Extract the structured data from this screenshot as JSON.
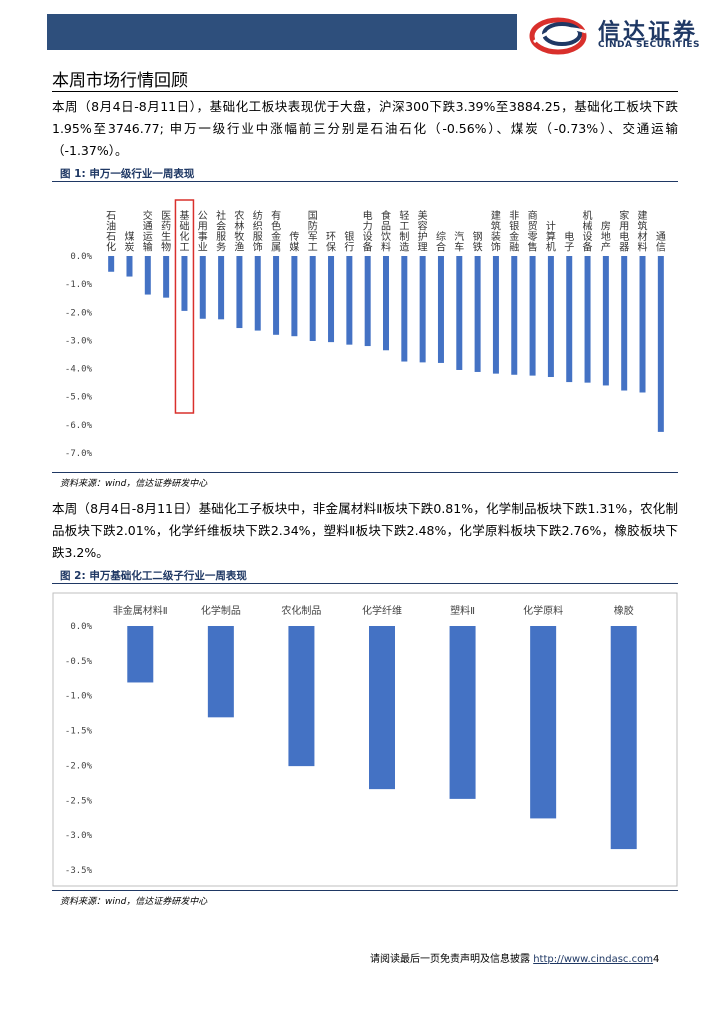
{
  "header": {
    "logo_cn": "信达证券",
    "logo_en": "CINDA SECURITIES"
  },
  "section_title": "本周市场行情回顾",
  "para1": "本周（8月4日-8月11日），基础化工板块表现优于大盘，沪深300下跌3.39%至3884.25，基础化工板块下跌1.95%至3746.77; 申万一级行业中涨幅前三分别是石油石化（-0.56%）、煤炭（-0.73%）、交通运输（-1.37%）。",
  "fig1_label": "图 1:  申万一级行业一周表现",
  "fig1_source": "资料来源：wind，信达证券研发中心",
  "para2": "本周（8月4日-8月11日）基础化工子板块中，非金属材料Ⅱ板块下跌0.81%，化学制品板块下跌1.31%，农化制品板块下跌2.01%，化学纤维板块下跌2.34%，塑料Ⅱ板块下跌2.48%，化学原料板块下跌2.76%，橡胶板块下跌3.2%。",
  "fig2_label": "图 2:  申万基础化工二级子行业一周表现",
  "fig2_source": "资料来源：wind，信达证券研发中心",
  "footer": {
    "text": "请阅读最后一页免责声明及信息披露 ",
    "link": "http://www.cindasc.com",
    "page": "4"
  },
  "colors": {
    "bar": "#4472c4",
    "highlight": "#d9302c",
    "brand": "#1f3864"
  },
  "chart_data": [
    {
      "type": "bar",
      "categories": [
        "石油石化",
        "煤炭",
        "交通运输",
        "医药生物",
        "基础化工",
        "公用事业",
        "社会服务",
        "农林牧渔",
        "纺织服饰",
        "有色金属",
        "传媒",
        "国防军工",
        "环保",
        "银行",
        "电力设备",
        "食品饮料",
        "轻工制造",
        "美容护理",
        "综合",
        "汽车",
        "钢铁",
        "建筑装饰",
        "非银金融",
        "商贸零售",
        "计算机",
        "电子",
        "机械设备",
        "房地产",
        "家用电器",
        "建筑材料",
        "通信"
      ],
      "values": [
        -0.56,
        -0.73,
        -1.37,
        -1.48,
        -1.95,
        -2.23,
        -2.25,
        -2.56,
        -2.65,
        -2.8,
        -2.85,
        -3.02,
        -3.06,
        -3.15,
        -3.2,
        -3.35,
        -3.75,
        -3.78,
        -3.8,
        -4.05,
        -4.12,
        -4.18,
        -4.22,
        -4.25,
        -4.3,
        -4.48,
        -4.5,
        -4.6,
        -4.78,
        -4.85,
        -6.25
      ],
      "yticks": [
        "0.0%",
        "-1.0%",
        "-2.0%",
        "-3.0%",
        "-4.0%",
        "-5.0%",
        "-6.0%",
        "-7.0%"
      ],
      "ylim": [
        -7,
        0
      ],
      "highlight_index": 4
    },
    {
      "type": "bar",
      "categories": [
        "非金属材料Ⅱ",
        "化学制品",
        "农化制品",
        "化学纤维",
        "塑料Ⅱ",
        "化学原料",
        "橡胶"
      ],
      "values": [
        -0.81,
        -1.31,
        -2.01,
        -2.34,
        -2.48,
        -2.76,
        -3.2
      ],
      "yticks": [
        "0.0%",
        "-0.5%",
        "-1.0%",
        "-1.5%",
        "-2.0%",
        "-2.5%",
        "-3.0%",
        "-3.5%"
      ],
      "ylim": [
        -3.5,
        0
      ]
    }
  ]
}
